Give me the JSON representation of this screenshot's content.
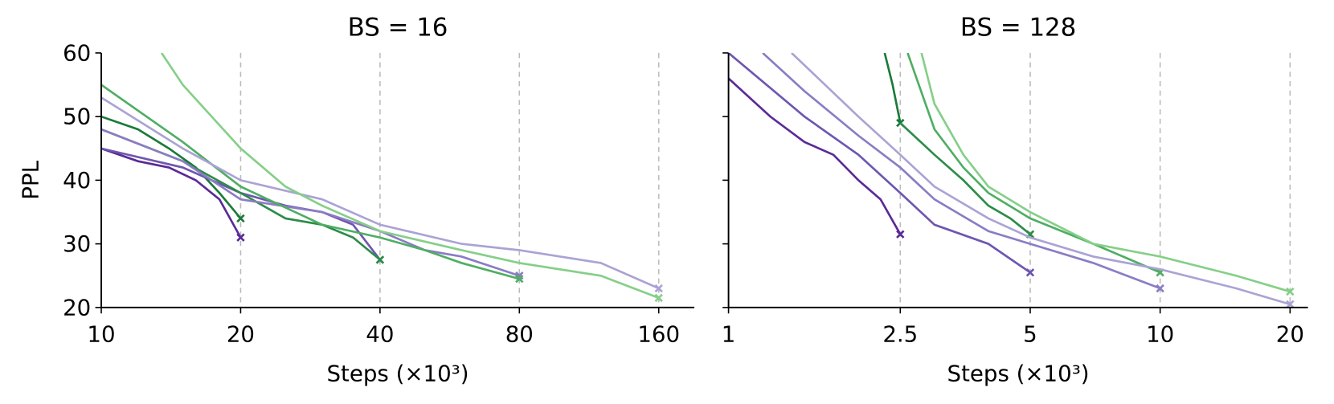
{
  "chart_data": [
    {
      "type": "line",
      "title": "BS = 16",
      "xlabel": "Steps (×10³)",
      "ylabel": "PPL",
      "xscale": "log",
      "xlim": [
        10,
        191
      ],
      "ylim": [
        20,
        60
      ],
      "xticks": [
        10,
        20,
        40,
        80,
        160
      ],
      "yticks": [
        20,
        30,
        40,
        50,
        60
      ],
      "vlines": [
        20,
        40,
        80,
        160
      ],
      "series": [
        {
          "color": "#5b2a96",
          "x": [
            10,
            12,
            14,
            16,
            18,
            20
          ],
          "values": [
            45,
            43,
            42,
            40,
            37,
            31
          ]
        },
        {
          "color": "#1b7a3a",
          "x": [
            10,
            12,
            14,
            16,
            18,
            20
          ],
          "values": [
            50,
            48,
            45,
            42,
            38,
            34
          ]
        },
        {
          "color": "#6e56b0",
          "x": [
            10,
            15,
            20,
            25,
            30,
            35,
            40
          ],
          "values": [
            45,
            42,
            38,
            36,
            35,
            33,
            27.5
          ]
        },
        {
          "color": "#2c8c48",
          "x": [
            10,
            15,
            20,
            25,
            30,
            35,
            40
          ],
          "values": [
            48,
            43,
            38,
            34,
            33,
            31,
            27.5
          ]
        },
        {
          "color": "#8b7cc4",
          "x": [
            10,
            15,
            20,
            30,
            40,
            50,
            60,
            80
          ],
          "values": [
            48,
            43,
            37,
            35,
            32,
            29,
            28,
            25
          ]
        },
        {
          "color": "#4fae63",
          "x": [
            10,
            15,
            20,
            30,
            40,
            50,
            60,
            80
          ],
          "values": [
            55,
            46,
            39,
            33,
            31,
            29,
            27,
            24.5
          ]
        },
        {
          "color": "#aaa3d4",
          "x": [
            10,
            15,
            20,
            30,
            40,
            60,
            80,
            120,
            160
          ],
          "values": [
            53,
            45,
            40,
            37,
            33,
            30,
            29,
            27,
            23
          ]
        },
        {
          "color": "#85cf88",
          "x": [
            13.5,
            15,
            20,
            25,
            30,
            40,
            60,
            80,
            120,
            160
          ],
          "values": [
            60,
            55,
            45,
            39,
            36,
            32,
            29,
            27,
            25,
            21.5
          ]
        }
      ]
    },
    {
      "type": "line",
      "title": "BS = 128",
      "xlabel": "Steps (×10³)",
      "xscale": "log",
      "sharey": true,
      "xlim": [
        1,
        22
      ],
      "ylim": [
        20,
        60
      ],
      "xticks": [
        1,
        2.5,
        5,
        10,
        20
      ],
      "vlines": [
        2.5,
        5,
        10,
        20
      ],
      "series": [
        {
          "color": "#5b2a96",
          "x": [
            1,
            1.25,
            1.5,
            1.75,
            2,
            2.25,
            2.5
          ],
          "values": [
            56,
            50,
            46,
            44,
            40,
            37,
            31.5
          ]
        },
        {
          "color": "#1b7a3a",
          "x": [
            2.3,
            2.4,
            2.5
          ],
          "values": [
            60,
            55,
            49
          ]
        },
        {
          "color": "#6e56b0",
          "x": [
            1,
            1.5,
            2,
            2.5,
            3,
            4,
            5
          ],
          "values": [
            60,
            50,
            44,
            38,
            33,
            30,
            25.5
          ]
        },
        {
          "color": "#2c8c48",
          "x": [
            2.5,
            3,
            3.5,
            4,
            4.5,
            5
          ],
          "values": [
            49,
            44,
            40,
            36,
            34,
            31.5
          ]
        },
        {
          "color": "#8b7cc4",
          "x": [
            1.2,
            1.5,
            2,
            2.5,
            3,
            4,
            5,
            7,
            10
          ],
          "values": [
            60,
            54,
            47,
            42,
            37,
            32,
            30,
            27,
            23
          ]
        },
        {
          "color": "#4fae63",
          "x": [
            2.6,
            3,
            3.5,
            4,
            5,
            7,
            10
          ],
          "values": [
            60,
            48,
            42,
            38,
            34,
            30,
            25.5
          ]
        },
        {
          "color": "#aaa3d4",
          "x": [
            1.4,
            2,
            2.5,
            3,
            4,
            5,
            7,
            10,
            15,
            20
          ],
          "values": [
            60,
            50,
            44,
            39,
            34,
            31,
            28,
            26,
            23,
            20.5
          ]
        },
        {
          "color": "#85cf88",
          "x": [
            2.8,
            3,
            3.5,
            4,
            5,
            7,
            10,
            15,
            20
          ],
          "values": [
            60,
            52,
            44,
            39,
            35,
            30,
            28,
            25,
            22.5
          ]
        }
      ]
    }
  ]
}
